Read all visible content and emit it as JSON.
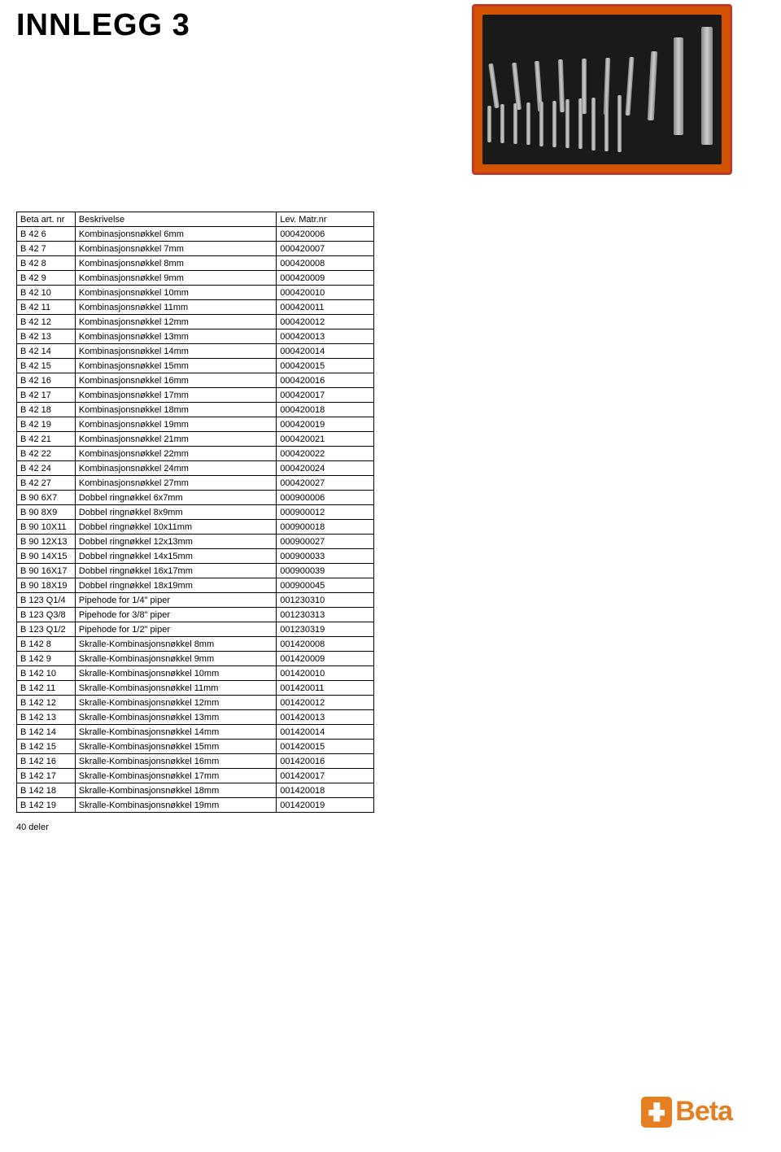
{
  "title": "INNLEGG 3",
  "table": {
    "headers": [
      "Beta art. nr",
      "Beskrivelse",
      "Lev. Matr.nr"
    ],
    "rows": [
      [
        "B 42 6",
        "Kombinasjonsnøkkel 6mm",
        "000420006"
      ],
      [
        "B 42 7",
        "Kombinasjonsnøkkel 7mm",
        "000420007"
      ],
      [
        "B 42 8",
        "Kombinasjonsnøkkel 8mm",
        "000420008"
      ],
      [
        "B 42 9",
        "Kombinasjonsnøkkel 9mm",
        "000420009"
      ],
      [
        "B 42 10",
        "Kombinasjonsnøkkel 10mm",
        "000420010"
      ],
      [
        "B 42 11",
        "Kombinasjonsnøkkel 11mm",
        "000420011"
      ],
      [
        "B 42 12",
        "Kombinasjonsnøkkel 12mm",
        "000420012"
      ],
      [
        "B 42 13",
        "Kombinasjonsnøkkel 13mm",
        "000420013"
      ],
      [
        "B 42 14",
        "Kombinasjonsnøkkel 14mm",
        "000420014"
      ],
      [
        "B 42 15",
        "Kombinasjonsnøkkel 15mm",
        "000420015"
      ],
      [
        "B 42 16",
        "Kombinasjonsnøkkel 16mm",
        "000420016"
      ],
      [
        "B 42 17",
        "Kombinasjonsnøkkel 17mm",
        "000420017"
      ],
      [
        "B 42 18",
        "Kombinasjonsnøkkel 18mm",
        "000420018"
      ],
      [
        "B 42 19",
        "Kombinasjonsnøkkel 19mm",
        "000420019"
      ],
      [
        "B 42 21",
        "Kombinasjonsnøkkel 21mm",
        "000420021"
      ],
      [
        "B 42 22",
        "Kombinasjonsnøkkel 22mm",
        "000420022"
      ],
      [
        "B 42 24",
        "Kombinasjonsnøkkel 24mm",
        "000420024"
      ],
      [
        "B 42 27",
        "Kombinasjonsnøkkel 27mm",
        "000420027"
      ],
      [
        "B 90 6X7",
        "Dobbel ringnøkkel 6x7mm",
        "000900006"
      ],
      [
        "B 90 8X9",
        "Dobbel ringnøkkel 8x9mm",
        "000900012"
      ],
      [
        "B 90 10X11",
        "Dobbel ringnøkkel 10x11mm",
        "000900018"
      ],
      [
        "B 90 12X13",
        "Dobbel ringnøkkel 12x13mm",
        "000900027"
      ],
      [
        "B 90 14X15",
        "Dobbel ringnøkkel 14x15mm",
        "000900033"
      ],
      [
        "B 90 16X17",
        "Dobbel ringnøkkel 16x17mm",
        "000900039"
      ],
      [
        "B 90 18X19",
        "Dobbel ringnøkkel 18x19mm",
        "000900045"
      ],
      [
        "B 123 Q1/4",
        "Pipehode for 1/4\" piper",
        "001230310"
      ],
      [
        "B 123 Q3/8",
        "Pipehode for 3/8\" piper",
        "001230313"
      ],
      [
        "B 123 Q1/2",
        "Pipehode for 1/2\" piper",
        "001230319"
      ],
      [
        "B 142 8",
        "Skralle-Kombinasjonsnøkkel 8mm",
        "001420008"
      ],
      [
        "B 142 9",
        "Skralle-Kombinasjonsnøkkel 9mm",
        "001420009"
      ],
      [
        "B 142 10",
        "Skralle-Kombinasjonsnøkkel 10mm",
        "001420010"
      ],
      [
        "B 142 11",
        "Skralle-Kombinasjonsnøkkel 11mm",
        "001420011"
      ],
      [
        "B 142 12",
        "Skralle-Kombinasjonsnøkkel 12mm",
        "001420012"
      ],
      [
        "B 142 13",
        "Skralle-Kombinasjonsnøkkel 13mm",
        "001420013"
      ],
      [
        "B 142 14",
        "Skralle-Kombinasjonsnøkkel 14mm",
        "001420014"
      ],
      [
        "B 142 15",
        "Skralle-Kombinasjonsnøkkel 15mm",
        "001420015"
      ],
      [
        "B 142 16",
        "Skralle-Kombinasjonsnøkkel 16mm",
        "001420016"
      ],
      [
        "B 142 17",
        "Skralle-Kombinasjonsnøkkel 17mm",
        "001420017"
      ],
      [
        "B 142 18",
        "Skralle-Kombinasjonsnøkkel 18mm",
        "001420018"
      ],
      [
        "B 142 19",
        "Skralle-Kombinasjonsnøkkel 19mm",
        "001420019"
      ]
    ]
  },
  "footer_count": "40 deler",
  "logo_text": "Beta",
  "colors": {
    "brand": "#e67e22",
    "text": "#000000",
    "border": "#000000"
  }
}
